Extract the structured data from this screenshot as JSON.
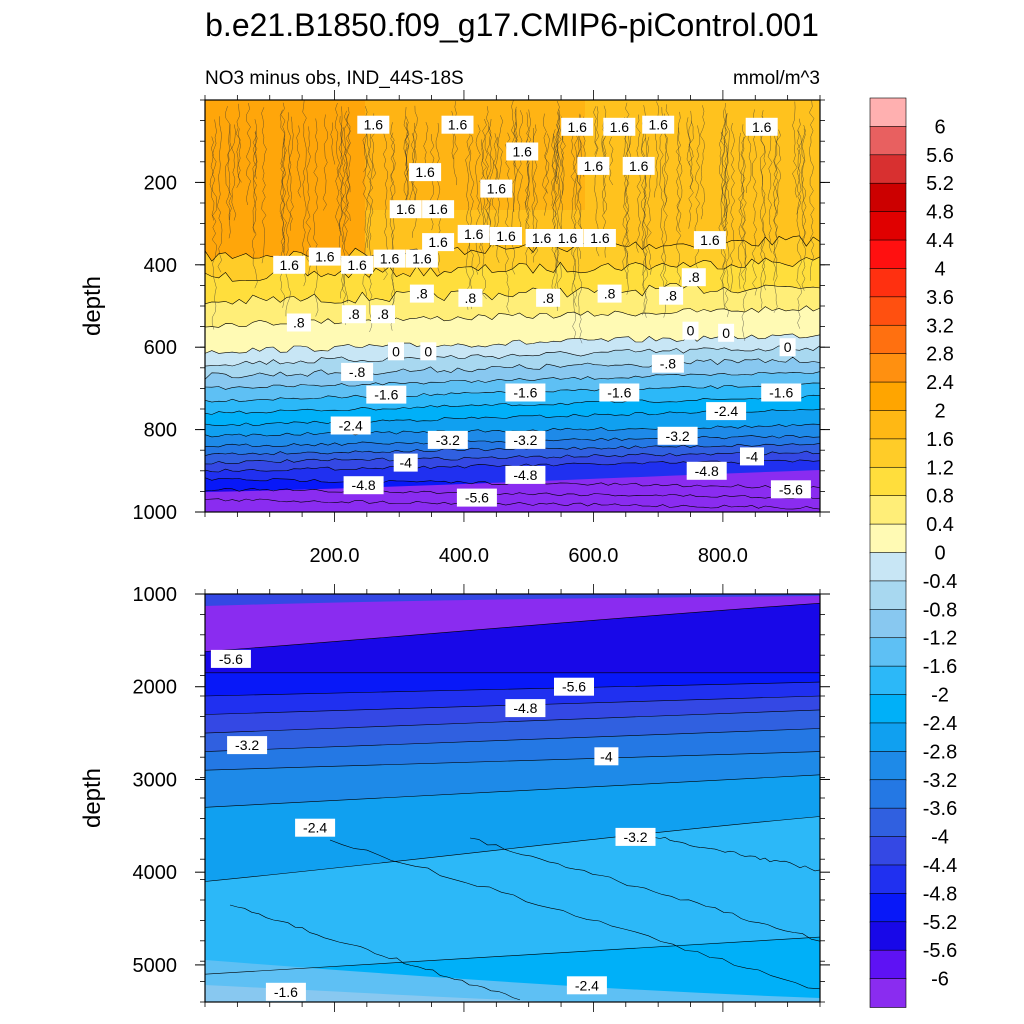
{
  "chart_data": {
    "type": "contour",
    "title": "b.e21.B1850.f09_g17.CMIP6-piControl.001",
    "subtitle_left": "NO3 minus obs, IND_44S-18S",
    "units": "mmol/m^3",
    "x_tick_labels": [
      "200.0",
      "400.0",
      "600.0",
      "800.0"
    ],
    "x_range": [
      0,
      950
    ],
    "panels": [
      {
        "name": "upper",
        "ylabel": "depth",
        "y_range": [
          0,
          1000
        ],
        "y_ticks": [
          "200",
          "400",
          "600",
          "800",
          "1000"
        ],
        "contour_levels_depth": [
          {
            "value": 1.6,
            "depth": 380
          },
          {
            "value": 1.2,
            "depth": 430
          },
          {
            "value": 0.8,
            "depth": 490
          },
          {
            "value": 0.4,
            "depth": 545
          },
          {
            "value": 0.0,
            "depth": 610
          },
          {
            "value": -0.4,
            "depth": 640
          },
          {
            "value": -0.8,
            "depth": 670
          },
          {
            "value": -1.2,
            "depth": 700
          },
          {
            "value": -1.6,
            "depth": 730
          },
          {
            "value": -2.0,
            "depth": 760
          },
          {
            "value": -2.4,
            "depth": 790
          },
          {
            "value": -2.8,
            "depth": 815
          },
          {
            "value": -3.2,
            "depth": 840
          },
          {
            "value": -3.6,
            "depth": 860
          },
          {
            "value": -4.0,
            "depth": 880
          },
          {
            "value": -4.4,
            "depth": 900
          },
          {
            "value": -4.8,
            "depth": 920
          },
          {
            "value": -5.2,
            "depth": 945
          },
          {
            "value": -5.6,
            "depth": 970
          }
        ],
        "labels": [
          {
            "text": "1.6",
            "x": 260,
            "y": 60
          },
          {
            "text": "1.6",
            "x": 390,
            "y": 60
          },
          {
            "text": "1.6",
            "x": 575,
            "y": 65
          },
          {
            "text": "1.6",
            "x": 640,
            "y": 65
          },
          {
            "text": "1.6",
            "x": 700,
            "y": 60
          },
          {
            "text": "1.6",
            "x": 860,
            "y": 65
          },
          {
            "text": "1.6",
            "x": 490,
            "y": 125
          },
          {
            "text": "1.6",
            "x": 600,
            "y": 160
          },
          {
            "text": "1.6",
            "x": 670,
            "y": 160
          },
          {
            "text": "1.6",
            "x": 340,
            "y": 175
          },
          {
            "text": "1.6",
            "x": 450,
            "y": 215
          },
          {
            "text": "1.6",
            "x": 310,
            "y": 265
          },
          {
            "text": "1.6",
            "x": 360,
            "y": 265
          },
          {
            "text": "1.6",
            "x": 415,
            "y": 325
          },
          {
            "text": "1.6",
            "x": 465,
            "y": 330
          },
          {
            "text": "1.6",
            "x": 520,
            "y": 335
          },
          {
            "text": "1.6",
            "x": 560,
            "y": 335
          },
          {
            "text": "1.6",
            "x": 610,
            "y": 335
          },
          {
            "text": "1.6",
            "x": 780,
            "y": 340
          },
          {
            "text": "1.6",
            "x": 360,
            "y": 345
          },
          {
            "text": "1.6",
            "x": 130,
            "y": 400
          },
          {
            "text": "1.6",
            "x": 185,
            "y": 380
          },
          {
            "text": "1.6",
            "x": 235,
            "y": 400
          },
          {
            "text": "1.6",
            "x": 285,
            "y": 385
          },
          {
            "text": "1.6",
            "x": 335,
            "y": 385
          },
          {
            "text": ".8",
            "x": 335,
            "y": 470
          },
          {
            "text": ".8",
            "x": 410,
            "y": 480
          },
          {
            "text": ".8",
            "x": 530,
            "y": 480
          },
          {
            "text": ".8",
            "x": 625,
            "y": 470
          },
          {
            "text": ".8",
            "x": 720,
            "y": 475
          },
          {
            "text": ".8",
            "x": 755,
            "y": 430
          },
          {
            "text": ".8",
            "x": 230,
            "y": 520
          },
          {
            "text": ".8",
            "x": 275,
            "y": 520
          },
          {
            "text": ".8",
            "x": 145,
            "y": 540
          },
          {
            "text": "0",
            "x": 750,
            "y": 560
          },
          {
            "text": "0",
            "x": 805,
            "y": 565
          },
          {
            "text": "0",
            "x": 295,
            "y": 610
          },
          {
            "text": "0",
            "x": 345,
            "y": 610
          },
          {
            "text": "0",
            "x": 900,
            "y": 600
          },
          {
            "text": "-.8",
            "x": 235,
            "y": 660
          },
          {
            "text": "-.8",
            "x": 715,
            "y": 640
          },
          {
            "text": "-1.6",
            "x": 640,
            "y": 710
          },
          {
            "text": "-1.6",
            "x": 890,
            "y": 710
          },
          {
            "text": "-1.6",
            "x": 280,
            "y": 715
          },
          {
            "text": "-1.6",
            "x": 495,
            "y": 710
          },
          {
            "text": "-2.4",
            "x": 225,
            "y": 790
          },
          {
            "text": "-2.4",
            "x": 805,
            "y": 755
          },
          {
            "text": "-3.2",
            "x": 375,
            "y": 825
          },
          {
            "text": "-3.2",
            "x": 495,
            "y": 825
          },
          {
            "text": "-3.2",
            "x": 730,
            "y": 815
          },
          {
            "text": "-4",
            "x": 310,
            "y": 880
          },
          {
            "text": "-4",
            "x": 845,
            "y": 865
          },
          {
            "text": "-4.8",
            "x": 245,
            "y": 935
          },
          {
            "text": "-4.8",
            "x": 495,
            "y": 910
          },
          {
            "text": "-4.8",
            "x": 775,
            "y": 900
          },
          {
            "text": "-5.6",
            "x": 420,
            "y": 965
          },
          {
            "text": "-5.6",
            "x": 905,
            "y": 945
          }
        ]
      },
      {
        "name": "lower",
        "ylabel": "depth",
        "y_range": [
          1000,
          5400
        ],
        "y_ticks": [
          "1000",
          "2000",
          "3000",
          "4000",
          "5000"
        ],
        "labels": [
          {
            "text": "-5.6",
            "x": 40,
            "y": 1700
          },
          {
            "text": "-5.6",
            "x": 570,
            "y": 2000
          },
          {
            "text": "-4.8",
            "x": 495,
            "y": 2230
          },
          {
            "text": "-4",
            "x": 620,
            "y": 2750
          },
          {
            "text": "-3.2",
            "x": 65,
            "y": 2630
          },
          {
            "text": "-3.2",
            "x": 665,
            "y": 3620
          },
          {
            "text": "-2.4",
            "x": 170,
            "y": 3520
          },
          {
            "text": "-2.4",
            "x": 590,
            "y": 5220
          },
          {
            "text": "-1.6",
            "x": 125,
            "y": 5290
          }
        ]
      }
    ],
    "colorbar": {
      "tick_labels": [
        "6",
        "5.6",
        "5.2",
        "4.8",
        "4.4",
        "4",
        "3.6",
        "3.2",
        "2.8",
        "2.4",
        "2",
        "1.6",
        "1.2",
        "0.8",
        "0.4",
        "0",
        "-0.4",
        "-0.8",
        "-1.2",
        "-1.6",
        "-2",
        "-2.4",
        "-2.8",
        "-3.2",
        "-3.6",
        "-4",
        "-4.4",
        "-4.8",
        "-5.2",
        "-5.6",
        "-6"
      ],
      "colors": [
        "#ffb0b0",
        "#e86060",
        "#d83030",
        "#cc0000",
        "#e00000",
        "#ff1010",
        "#ff3010",
        "#ff5010",
        "#ff7010",
        "#ff9010",
        "#ffa500",
        "#ffb814",
        "#ffcc28",
        "#ffde3c",
        "#ffee78",
        "#fffab4",
        "#c8e6f5",
        "#a8d8f0",
        "#88c8f0",
        "#5ec0f4",
        "#2cb8f8",
        "#00b0f8",
        "#10a0f0",
        "#1e8ae8",
        "#2478e4",
        "#3060e0",
        "#3448e4",
        "#2030f0",
        "#0818f8",
        "#1808e8",
        "#5e12f4",
        "#8a2cf0"
      ]
    }
  }
}
